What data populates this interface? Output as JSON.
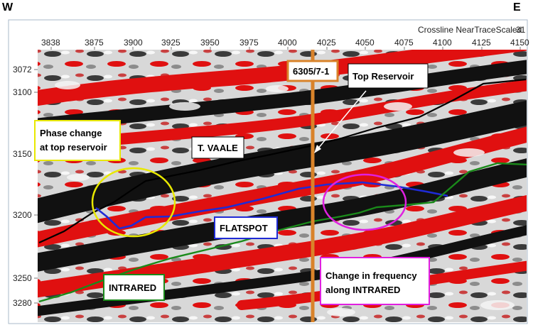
{
  "orientation": {
    "west": "W",
    "east": "E"
  },
  "axis_title": "Crossline NearTraceScaled",
  "axis_title_cut": "31",
  "x_ticks": [
    "3838",
    "3875",
    "3900",
    "3925",
    "3950",
    "3975",
    "4000",
    "4025",
    "4050",
    "4075",
    "4100",
    "4125",
    "4150"
  ],
  "y_ticks": [
    "3072",
    "3100",
    "3150",
    "3200",
    "3250",
    "3280"
  ],
  "well": {
    "name": "6305/7-1",
    "color": "#d9832a"
  },
  "annotations": {
    "top_reservoir": "Top Reservoir",
    "phase_change_1": "Phase change",
    "phase_change_2": "at top reservoir",
    "t_vaale": "T. VAALE",
    "flatspot": "FLATSPOT",
    "intrared": "INTRARED",
    "freq_change_1": "Change in frequency",
    "freq_change_2": "along INTRARED"
  },
  "colors": {
    "phase_box": "#e8e800",
    "flatspot": "#1f2bd6",
    "intrared": "#1a8a1a",
    "freq_box": "#e020e0",
    "horizon_top": "#000000"
  }
}
